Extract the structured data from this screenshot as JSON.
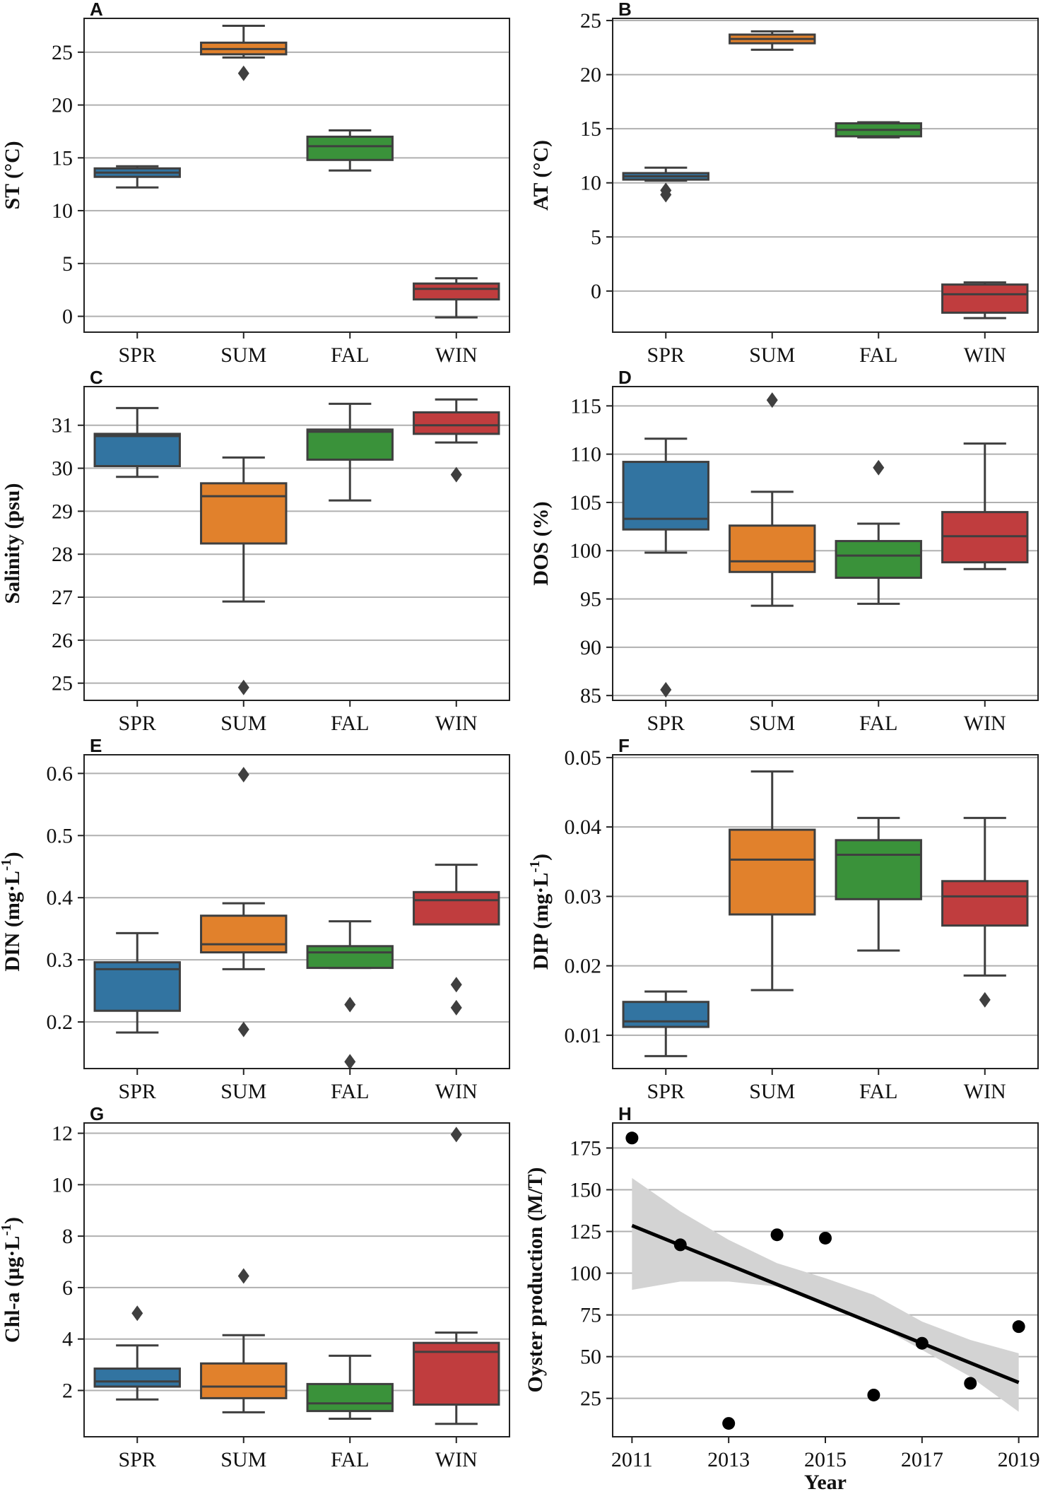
{
  "colors": {
    "SPR": "#3274a1",
    "SUM": "#e1812c",
    "FAL": "#3a923a",
    "WIN": "#c03d3e",
    "edge": "#3f3f3f",
    "grid": "#b0b0b0",
    "ci_band": "#d3d3d3",
    "line": "#000000"
  },
  "chart_data": [
    {
      "panel": "A",
      "type": "box",
      "ylabel": "ST (°C)",
      "categories": [
        "SPR",
        "SUM",
        "FAL",
        "WIN"
      ],
      "ylim": [
        -1.5,
        28.2
      ],
      "yticks": [
        0,
        5,
        10,
        15,
        20,
        25
      ],
      "boxes": [
        {
          "whislo": 12.2,
          "q1": 13.2,
          "med": 13.6,
          "q3": 14.0,
          "whishi": 14.2,
          "fliers": []
        },
        {
          "whislo": 24.5,
          "q1": 24.8,
          "med": 25.3,
          "q3": 25.9,
          "whishi": 27.5,
          "fliers": [
            23.0
          ]
        },
        {
          "whislo": 13.8,
          "q1": 14.8,
          "med": 16.1,
          "q3": 17.0,
          "whishi": 17.6,
          "fliers": []
        },
        {
          "whislo": -0.1,
          "q1": 1.6,
          "med": 2.6,
          "q3": 3.1,
          "whishi": 3.6,
          "fliers": []
        }
      ]
    },
    {
      "panel": "B",
      "type": "box",
      "ylabel": "AT (°C)",
      "categories": [
        "SPR",
        "SUM",
        "FAL",
        "WIN"
      ],
      "ylim": [
        -3.8,
        25.2
      ],
      "yticks": [
        0,
        5,
        10,
        15,
        20,
        25
      ],
      "boxes": [
        {
          "whislo": 10.2,
          "q1": 10.3,
          "med": 10.6,
          "q3": 10.9,
          "whishi": 11.4,
          "fliers": [
            9.3,
            8.9
          ]
        },
        {
          "whislo": 22.3,
          "q1": 22.9,
          "med": 23.3,
          "q3": 23.7,
          "whishi": 24.0,
          "fliers": []
        },
        {
          "whislo": 14.2,
          "q1": 14.3,
          "med": 14.9,
          "q3": 15.5,
          "whishi": 15.6,
          "fliers": []
        },
        {
          "whislo": -2.5,
          "q1": -2.0,
          "med": -0.3,
          "q3": 0.6,
          "whishi": 0.8,
          "fliers": []
        }
      ]
    },
    {
      "panel": "C",
      "type": "box",
      "ylabel": "Salinity (psu)",
      "categories": [
        "SPR",
        "SUM",
        "FAL",
        "WIN"
      ],
      "ylim": [
        24.6,
        31.9
      ],
      "yticks": [
        25,
        26,
        27,
        28,
        29,
        30,
        31
      ],
      "boxes": [
        {
          "whislo": 29.8,
          "q1": 30.05,
          "med": 30.75,
          "q3": 30.8,
          "whishi": 31.4,
          "fliers": []
        },
        {
          "whislo": 26.9,
          "q1": 28.25,
          "med": 29.35,
          "q3": 29.65,
          "whishi": 30.25,
          "fliers": [
            24.9
          ]
        },
        {
          "whislo": 29.25,
          "q1": 30.2,
          "med": 30.85,
          "q3": 30.9,
          "whishi": 31.5,
          "fliers": []
        },
        {
          "whislo": 30.6,
          "q1": 30.8,
          "med": 31.0,
          "q3": 31.3,
          "whishi": 31.6,
          "fliers": [
            29.85
          ]
        }
      ]
    },
    {
      "panel": "D",
      "type": "box",
      "ylabel": "DOS (%)",
      "categories": [
        "SPR",
        "SUM",
        "FAL",
        "WIN"
      ],
      "ylim": [
        84.5,
        117.0
      ],
      "yticks": [
        85,
        90,
        95,
        100,
        105,
        110,
        115
      ],
      "boxes": [
        {
          "whislo": 99.8,
          "q1": 102.2,
          "med": 103.3,
          "q3": 109.2,
          "whishi": 111.6,
          "fliers": [
            85.6
          ]
        },
        {
          "whislo": 94.3,
          "q1": 97.8,
          "med": 98.9,
          "q3": 102.6,
          "whishi": 106.1,
          "fliers": [
            115.6
          ]
        },
        {
          "whislo": 94.5,
          "q1": 97.2,
          "med": 99.5,
          "q3": 101.0,
          "whishi": 102.8,
          "fliers": [
            108.6
          ]
        },
        {
          "whislo": 98.1,
          "q1": 98.8,
          "med": 101.5,
          "q3": 104.0,
          "whishi": 111.1,
          "fliers": []
        }
      ]
    },
    {
      "panel": "E",
      "type": "box",
      "ylabel": "DIN (mg·L",
      "ylabel_sup": "-1",
      "ylabel_end": ")",
      "categories": [
        "SPR",
        "SUM",
        "FAL",
        "WIN"
      ],
      "ylim": [
        0.125,
        0.63
      ],
      "yticks": [
        0.2,
        0.3,
        0.4,
        0.5,
        0.6
      ],
      "yticklabels": [
        "0.2",
        "0.3",
        "0.4",
        "0.5",
        "0.6"
      ],
      "boxes": [
        {
          "whislo": 0.183,
          "q1": 0.218,
          "med": 0.285,
          "q3": 0.296,
          "whishi": 0.343,
          "fliers": []
        },
        {
          "whislo": 0.285,
          "q1": 0.312,
          "med": 0.325,
          "q3": 0.371,
          "whishi": 0.391,
          "fliers": [
            0.598,
            0.188
          ]
        },
        {
          "whislo": 0.287,
          "q1": 0.287,
          "med": 0.312,
          "q3": 0.322,
          "whishi": 0.362,
          "fliers": [
            0.228,
            0.136
          ]
        },
        {
          "whislo": 0.357,
          "q1": 0.357,
          "med": 0.396,
          "q3": 0.409,
          "whishi": 0.453,
          "fliers": [
            0.26,
            0.223
          ]
        }
      ]
    },
    {
      "panel": "F",
      "type": "box",
      "ylabel": "DIP (mg·L",
      "ylabel_sup": "-1",
      "ylabel_end": ")",
      "categories": [
        "SPR",
        "SUM",
        "FAL",
        "WIN"
      ],
      "ylim": [
        0.0052,
        0.0504
      ],
      "yticks": [
        0.01,
        0.02,
        0.03,
        0.04,
        0.05
      ],
      "yticklabels": [
        "0.01",
        "0.02",
        "0.03",
        "0.04",
        "0.05"
      ],
      "boxes": [
        {
          "whislo": 0.007,
          "q1": 0.0112,
          "med": 0.012,
          "q3": 0.0148,
          "whishi": 0.0163,
          "fliers": []
        },
        {
          "whislo": 0.0165,
          "q1": 0.0274,
          "med": 0.0353,
          "q3": 0.0396,
          "whishi": 0.048,
          "fliers": []
        },
        {
          "whislo": 0.0222,
          "q1": 0.0296,
          "med": 0.036,
          "q3": 0.0381,
          "whishi": 0.0413,
          "fliers": []
        },
        {
          "whislo": 0.0186,
          "q1": 0.0258,
          "med": 0.03,
          "q3": 0.0322,
          "whishi": 0.0413,
          "fliers": [
            0.0151
          ]
        }
      ]
    },
    {
      "panel": "G",
      "type": "box",
      "ylabel": "Chl-a (µg·L",
      "ylabel_sup": "-1",
      "ylabel_end": ")",
      "categories": [
        "SPR",
        "SUM",
        "FAL",
        "WIN"
      ],
      "ylim": [
        0.2,
        12.4
      ],
      "yticks": [
        2,
        4,
        6,
        8,
        10,
        12
      ],
      "boxes": [
        {
          "whislo": 1.65,
          "q1": 2.15,
          "med": 2.35,
          "q3": 2.85,
          "whishi": 3.75,
          "fliers": [
            5.0
          ]
        },
        {
          "whislo": 1.15,
          "q1": 1.7,
          "med": 2.15,
          "q3": 3.05,
          "whishi": 4.15,
          "fliers": [
            6.45
          ]
        },
        {
          "whislo": 0.9,
          "q1": 1.2,
          "med": 1.5,
          "q3": 2.25,
          "whishi": 3.35,
          "fliers": []
        },
        {
          "whislo": 0.7,
          "q1": 1.45,
          "med": 3.5,
          "q3": 3.85,
          "whishi": 4.25,
          "fliers": [
            11.95
          ]
        }
      ]
    },
    {
      "panel": "H",
      "type": "scatter",
      "ylabel": "Oyster production (M/T)",
      "xlabel": "Year",
      "x": [
        2011,
        2012,
        2013,
        2014,
        2015,
        2016,
        2017,
        2018,
        2019
      ],
      "y": [
        181,
        117,
        10,
        123,
        121,
        27,
        58,
        34,
        68
      ],
      "xlim": [
        2010.6,
        2019.4
      ],
      "ylim": [
        2.0,
        190.0
      ],
      "xticks": [
        2011,
        2013,
        2015,
        2017,
        2019
      ],
      "yticks": [
        25,
        50,
        75,
        100,
        125,
        150,
        175
      ],
      "regression": {
        "x": [
          2011,
          2019
        ],
        "y": [
          128.5,
          34.5
        ],
        "ci_x": [
          2011,
          2012,
          2013,
          2014,
          2015,
          2016,
          2017,
          2018,
          2019
        ],
        "ci_lower": [
          90,
          95,
          95,
          92,
          82,
          70,
          54,
          38,
          17
        ],
        "ci_upper": [
          157,
          137,
          120,
          106,
          97,
          87,
          71,
          60,
          52
        ]
      }
    }
  ]
}
